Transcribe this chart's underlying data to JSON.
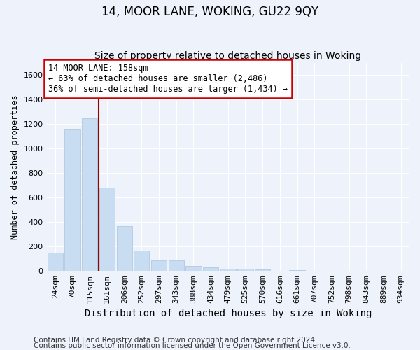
{
  "title1": "14, MOOR LANE, WOKING, GU22 9QY",
  "title2": "Size of property relative to detached houses in Woking",
  "xlabel": "Distribution of detached houses by size in Woking",
  "ylabel": "Number of detached properties",
  "footer1": "Contains HM Land Registry data © Crown copyright and database right 2024.",
  "footer2": "Contains public sector information licensed under the Open Government Licence v3.0.",
  "categories": [
    "24sqm",
    "70sqm",
    "115sqm",
    "161sqm",
    "206sqm",
    "252sqm",
    "297sqm",
    "343sqm",
    "388sqm",
    "434sqm",
    "479sqm",
    "525sqm",
    "570sqm",
    "616sqm",
    "661sqm",
    "707sqm",
    "752sqm",
    "798sqm",
    "843sqm",
    "889sqm",
    "934sqm"
  ],
  "values": [
    150,
    1160,
    1245,
    680,
    365,
    170,
    90,
    90,
    40,
    30,
    20,
    20,
    15,
    0,
    10,
    0,
    0,
    0,
    0,
    0,
    0
  ],
  "bar_color": "#c9ddf2",
  "bar_edge_color": "#a8c4e0",
  "vline_color": "#990000",
  "annotation_text": "14 MOOR LANE: 158sqm\n← 63% of detached houses are smaller (2,486)\n36% of semi-detached houses are larger (1,434) →",
  "annotation_box_color": "#ffffff",
  "annotation_box_edge": "#cc0000",
  "ylim": [
    0,
    1700
  ],
  "yticks": [
    0,
    200,
    400,
    600,
    800,
    1000,
    1200,
    1400,
    1600
  ],
  "background_color": "#edf2fb",
  "grid_color": "#ffffff",
  "title1_fontsize": 12,
  "title2_fontsize": 10,
  "xlabel_fontsize": 10,
  "ylabel_fontsize": 8.5,
  "tick_fontsize": 8,
  "annotation_fontsize": 8.5,
  "footer_fontsize": 7.5
}
